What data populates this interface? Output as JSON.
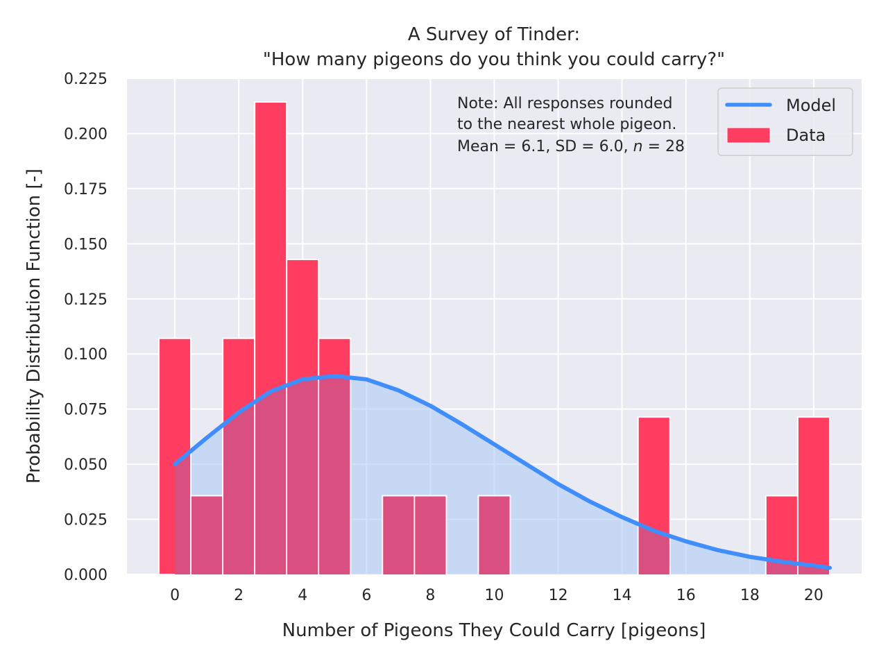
{
  "chart_data": {
    "type": "bar",
    "title": [
      "A Survey of Tinder:",
      "\"How many pigeons do you think you could carry?\""
    ],
    "xlabel": "Number of Pigeons They Could Carry [pigeons]",
    "ylabel": "Probability Distribution Function [-]",
    "xlim": [
      -1.5,
      21.5
    ],
    "ylim": [
      0,
      0.225
    ],
    "xticks": [
      0,
      2,
      4,
      6,
      8,
      10,
      12,
      14,
      16,
      18,
      20
    ],
    "yticks": [
      0.0,
      0.025,
      0.05,
      0.075,
      0.1,
      0.125,
      0.15,
      0.175,
      0.2,
      0.225
    ],
    "ytick_labels": [
      "0.000",
      "0.025",
      "0.050",
      "0.075",
      "0.100",
      "0.125",
      "0.150",
      "0.175",
      "0.200",
      "0.225"
    ],
    "grid": true,
    "legend_position": "top-right",
    "series": [
      {
        "name": "Data",
        "type": "histogram",
        "color": "#ff3d60",
        "x": [
          0,
          1,
          2,
          3,
          4,
          5,
          6,
          7,
          8,
          9,
          10,
          11,
          12,
          13,
          14,
          15,
          16,
          17,
          18,
          19,
          20
        ],
        "values": [
          0.1071,
          0.0357,
          0.1071,
          0.2143,
          0.1429,
          0.1071,
          0,
          0.0357,
          0.0357,
          0,
          0.0357,
          0,
          0,
          0,
          0,
          0.0714,
          0,
          0,
          0,
          0.0357,
          0.0714
        ]
      },
      {
        "name": "Model",
        "type": "line",
        "color": "#3f8efc",
        "fill_color": "#aac8f5",
        "x": [
          0,
          1,
          2,
          3,
          4,
          5,
          6,
          7,
          8,
          9,
          10,
          11,
          12,
          13,
          14,
          15,
          16,
          17,
          18,
          19,
          20,
          20.5
        ],
        "values": [
          0.05,
          0.062,
          0.0735,
          0.083,
          0.0885,
          0.09,
          0.0885,
          0.0835,
          0.0765,
          0.068,
          0.059,
          0.05,
          0.041,
          0.033,
          0.026,
          0.0198,
          0.015,
          0.011,
          0.008,
          0.0058,
          0.004,
          0.003
        ]
      }
    ],
    "annotation": {
      "lines": [
        "Note: All responses rounded",
        "to the nearest whole pigeon."
      ],
      "stats_prefix": "Mean = 6.1, SD = 6.0, ",
      "stats_n_symbol": "n",
      "stats_suffix": " = 28"
    },
    "legend": [
      {
        "label": "Model",
        "kind": "line",
        "color": "#3f8efc"
      },
      {
        "label": "Data",
        "kind": "patch",
        "color": "#ff3d60"
      }
    ],
    "colors": {
      "plot_background": "#eaeaf2",
      "grid": "#ffffff",
      "text": "#262626",
      "bar_overlap": "#d84f80"
    }
  }
}
